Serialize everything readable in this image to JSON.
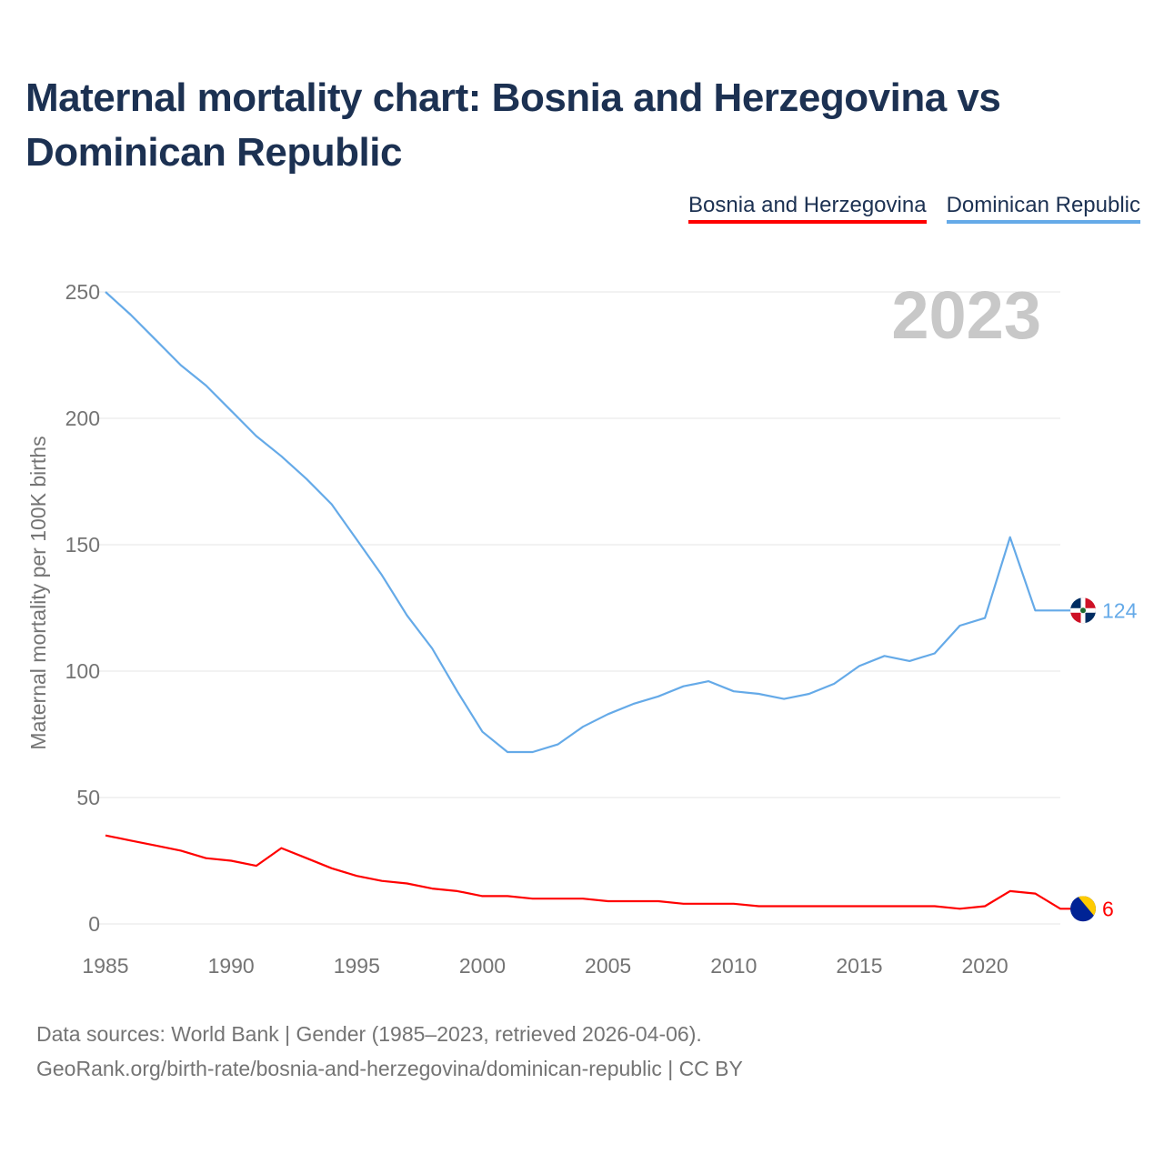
{
  "title": "Maternal mortality chart: Bosnia and Herzegovina vs Dominican Republic",
  "legend": {
    "bih": "Bosnia and Herzegovina",
    "dom": "Dominican Republic"
  },
  "year_watermark": "2023",
  "end_labels": {
    "bih": "6",
    "dom": "124"
  },
  "source": {
    "line1": "Data sources: World Bank | Gender (1985–2023, retrieved 2026-04-06).",
    "line2": "GeoRank.org/birth-rate/bosnia-and-herzegovina/dominican-republic | CC BY"
  },
  "colors": {
    "bih": "#ff0000",
    "dom": "#65aae8",
    "axis_text": "#747474",
    "grid": "#e6e6e6",
    "title": "#1c3152",
    "watermark": "#c8c8c8"
  },
  "chart_data": {
    "type": "line",
    "title": "Maternal mortality chart: Bosnia and Herzegovina vs Dominican Republic",
    "xlabel": "",
    "ylabel": "Maternal mortality per 100K births",
    "xlim": [
      1985,
      2023
    ],
    "ylim": [
      0,
      250
    ],
    "x_ticks": [
      1985,
      1990,
      1995,
      2000,
      2005,
      2010,
      2015,
      2020
    ],
    "y_ticks": [
      0,
      50,
      100,
      150,
      200,
      250
    ],
    "grid": true,
    "legend_position": "top-right",
    "x": [
      1985,
      1986,
      1987,
      1988,
      1989,
      1990,
      1991,
      1992,
      1993,
      1994,
      1995,
      1996,
      1997,
      1998,
      1999,
      2000,
      2001,
      2002,
      2003,
      2004,
      2005,
      2006,
      2007,
      2008,
      2009,
      2010,
      2011,
      2012,
      2013,
      2014,
      2015,
      2016,
      2017,
      2018,
      2019,
      2020,
      2021,
      2022,
      2023
    ],
    "series": [
      {
        "name": "Bosnia and Herzegovina",
        "key": "bih",
        "values": [
          35,
          33,
          31,
          29,
          26,
          25,
          23,
          30,
          26,
          22,
          19,
          17,
          16,
          14,
          13,
          11,
          11,
          10,
          10,
          10,
          9,
          9,
          9,
          8,
          8,
          8,
          7,
          7,
          7,
          7,
          7,
          7,
          7,
          7,
          6,
          7,
          13,
          12,
          6
        ]
      },
      {
        "name": "Dominican Republic",
        "key": "dom",
        "values": [
          250,
          241,
          231,
          221,
          213,
          203,
          193,
          185,
          176,
          166,
          152,
          138,
          122,
          109,
          92,
          76,
          68,
          68,
          71,
          78,
          83,
          87,
          90,
          94,
          96,
          92,
          91,
          89,
          91,
          95,
          102,
          106,
          104,
          107,
          118,
          121,
          153,
          124,
          124
        ]
      }
    ]
  }
}
